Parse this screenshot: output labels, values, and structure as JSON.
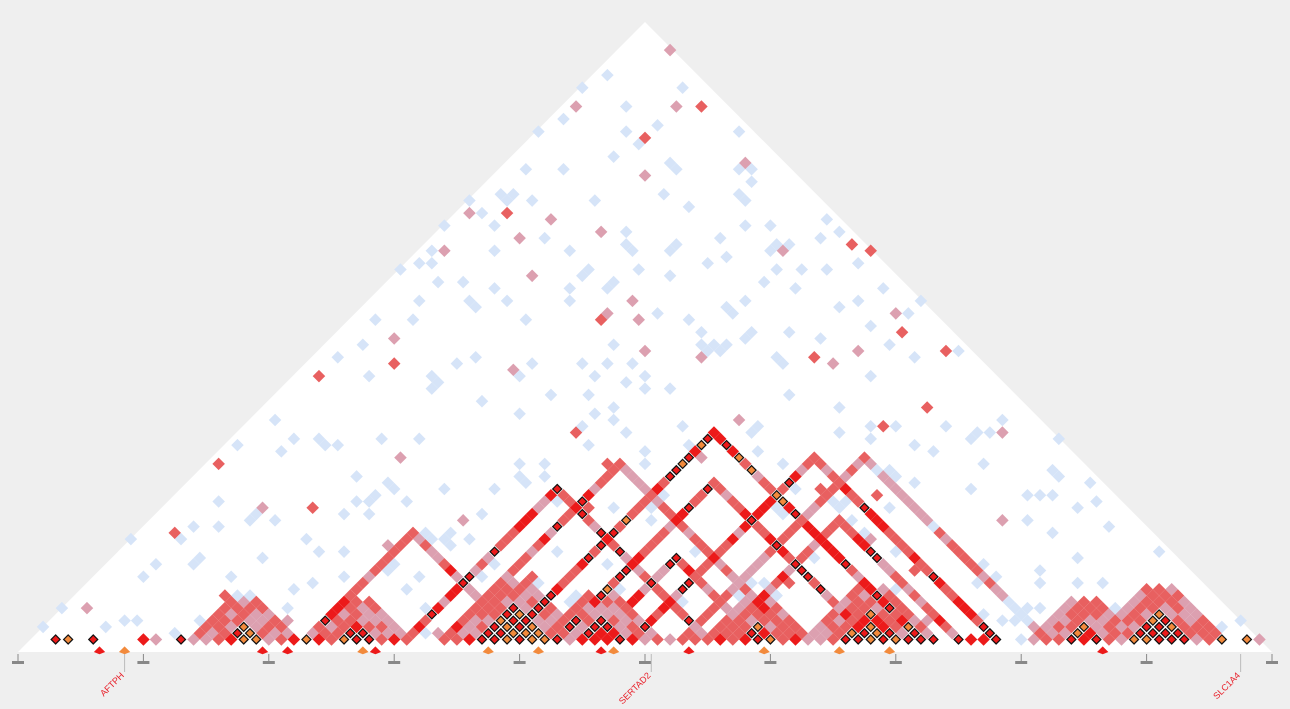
{
  "plot": {
    "type": "ld-heatmap",
    "n_positions": 100,
    "seed": 7
  },
  "colors": {
    "background": "#efefef",
    "triangle": "#ffffff",
    "low": "#d6e4f8",
    "mid_pink": "#dca0b0",
    "mid_red": "#e86060",
    "high_red": "#ec1a1a",
    "high_orange": "#f28a3c",
    "outline": "#111111",
    "tick": "#888888",
    "gene_text": "#e8202a"
  },
  "genes": [
    {
      "label": "AFTPH",
      "position": 8
    },
    {
      "label": "SERTAD2",
      "position": 50
    },
    {
      "label": "SLC1A4",
      "position": 97
    }
  ],
  "blocks": [
    {
      "start": 16,
      "end": 19,
      "strength": 0.95
    },
    {
      "start": 25,
      "end": 28,
      "strength": 0.85
    },
    {
      "start": 36,
      "end": 42,
      "strength": 1.0
    },
    {
      "start": 44,
      "end": 48,
      "strength": 0.8
    },
    {
      "start": 57,
      "end": 60,
      "strength": 0.85
    },
    {
      "start": 65,
      "end": 70,
      "strength": 0.9
    },
    {
      "start": 83,
      "end": 86,
      "strength": 0.85
    },
    {
      "start": 88,
      "end": 93,
      "strength": 1.0
    }
  ],
  "lines": [
    {
      "a": 38,
      "b": 72,
      "strength": 0.95
    },
    {
      "a": 42,
      "b": 68,
      "strength": 0.85
    },
    {
      "a": 30,
      "b": 55,
      "strength": 0.8
    },
    {
      "a": 48,
      "b": 78,
      "strength": 0.85
    },
    {
      "a": 33,
      "b": 62,
      "strength": 0.7
    },
    {
      "a": 45,
      "b": 59,
      "strength": 0.8
    },
    {
      "a": 52,
      "b": 82,
      "strength": 0.6
    },
    {
      "a": 22,
      "b": 40,
      "strength": 0.7
    },
    {
      "a": 55,
      "b": 75,
      "strength": 0.75
    }
  ]
}
